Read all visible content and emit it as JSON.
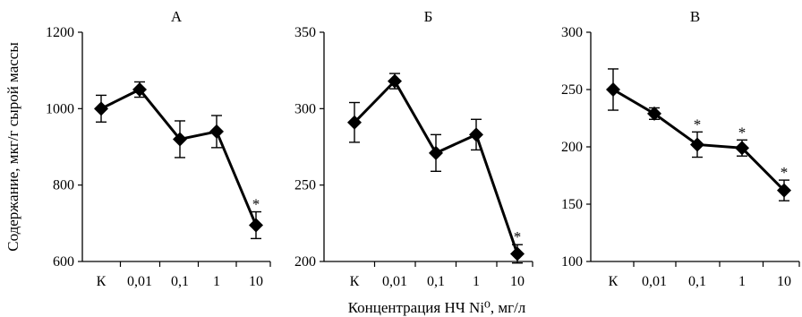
{
  "figure": {
    "ylabel": "Содержание, мкг/г сырой массы",
    "xlabel": "Концентрация НЧ Ni⁰, мг/л"
  },
  "chart_data": [
    {
      "type": "line",
      "title": "А",
      "categories": [
        "К",
        "0,01",
        "0,1",
        "1",
        "10"
      ],
      "values": [
        1000,
        1050,
        920,
        940,
        695
      ],
      "errors": [
        35,
        20,
        48,
        42,
        35
      ],
      "significant": [
        false,
        false,
        false,
        false,
        true
      ],
      "significance_mark": "*",
      "ylim": [
        600,
        1200
      ],
      "yticks": [
        600,
        800,
        1000,
        1200
      ],
      "ytick_labels": [
        "600",
        "800",
        "1000",
        "1200"
      ],
      "grid": false,
      "marker": "diamond",
      "color": "#000000"
    },
    {
      "type": "line",
      "title": "Б",
      "categories": [
        "К",
        "0,01",
        "0,1",
        "1",
        "10"
      ],
      "values": [
        291,
        318,
        271,
        283,
        205
      ],
      "errors": [
        13,
        5,
        12,
        10,
        6
      ],
      "significant": [
        false,
        false,
        false,
        false,
        true
      ],
      "significance_mark": "*",
      "ylim": [
        200,
        350
      ],
      "yticks": [
        200,
        250,
        300,
        350
      ],
      "ytick_labels": [
        "200",
        "250",
        "300",
        "350"
      ],
      "grid": false,
      "marker": "diamond",
      "color": "#000000"
    },
    {
      "type": "line",
      "title": "В",
      "categories": [
        "К",
        "0,01",
        "0,1",
        "1",
        "10"
      ],
      "values": [
        250,
        229,
        202,
        199,
        162
      ],
      "errors": [
        18,
        5,
        11,
        7,
        9
      ],
      "significant": [
        false,
        false,
        true,
        true,
        true
      ],
      "significance_mark": "*",
      "ylim": [
        100,
        300
      ],
      "yticks": [
        100,
        150,
        200,
        250,
        300
      ],
      "ytick_labels": [
        "100",
        "150",
        "200",
        "250",
        "300"
      ],
      "grid": false,
      "marker": "diamond",
      "color": "#000000"
    }
  ]
}
